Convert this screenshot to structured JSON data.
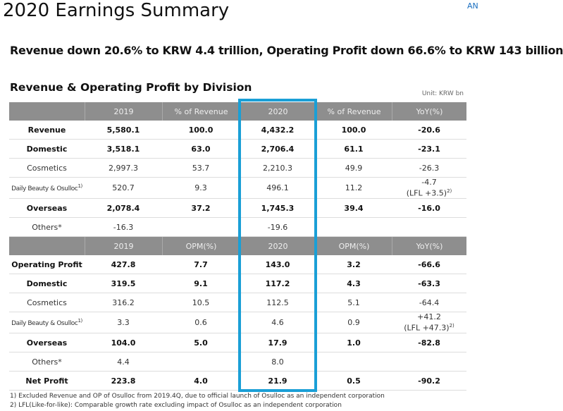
{
  "header": {
    "title": "2020 Earnings Summary",
    "logo": "AN",
    "headline": "Revenue down 20.6% to KRW 4.4 trillion, Operating Profit down 66.6% to KRW 143 billion"
  },
  "table": {
    "title": "Revenue & Operating Profit by Division",
    "unit": "Unit: KRW bn",
    "sections": [
      {
        "header": [
          null,
          "2019",
          "% of Revenue",
          "2020",
          "% of Revenue",
          "YoY(%)"
        ],
        "rows": [
          {
            "cells": [
              "Revenue",
              "5,580.1",
              "100.0",
              "4,432.2",
              "100.0",
              "-20.6"
            ],
            "bold": true
          },
          {
            "cells": [
              "Domestic",
              "3,518.1",
              "63.0",
              "2,706.4",
              "61.1",
              "-23.1"
            ],
            "bold": true
          },
          {
            "cells": [
              "Cosmetics",
              "2,997.3",
              "53.7",
              "2,210.3",
              "49.9",
              "-26.3"
            ],
            "bold": false
          },
          {
            "cells": [
              "Daily Beauty & Osulloc",
              "520.7",
              "9.3",
              "496.1",
              "11.2",
              "-4.7"
            ],
            "bold": false,
            "label_note": "1)",
            "yoy_extra": "(LFL +3.5)",
            "yoy_note": "2)"
          },
          {
            "cells": [
              "Overseas",
              "2,078.4",
              "37.2",
              "1,745.3",
              "39.4",
              "-16.0"
            ],
            "bold": true
          },
          {
            "cells": [
              "Others*",
              "-16.3",
              null,
              "-19.6",
              null,
              null
            ],
            "bold": false
          }
        ]
      },
      {
        "header": [
          null,
          "2019",
          "OPM(%)",
          "2020",
          "OPM(%)",
          "YoY(%)"
        ],
        "rows": [
          {
            "cells": [
              "Operating Profit",
              "427.8",
              "7.7",
              "143.0",
              "3.2",
              "-66.6"
            ],
            "bold": true
          },
          {
            "cells": [
              "Domestic",
              "319.5",
              "9.1",
              "117.2",
              "4.3",
              "-63.3"
            ],
            "bold": true
          },
          {
            "cells": [
              "Cosmetics",
              "316.2",
              "10.5",
              "112.5",
              "5.1",
              "-64.4"
            ],
            "bold": false
          },
          {
            "cells": [
              "Daily Beauty & Osulloc",
              "3.3",
              "0.6",
              "4.6",
              "0.9",
              "+41.2"
            ],
            "bold": false,
            "label_note": "1)",
            "yoy_extra": "(LFL +47.3)",
            "yoy_note": "2)"
          },
          {
            "cells": [
              "Overseas",
              "104.0",
              "5.0",
              "17.9",
              "1.0",
              "-82.8"
            ],
            "bold": true
          },
          {
            "cells": [
              "Others*",
              "4.4",
              null,
              "8.0",
              null,
              null
            ],
            "bold": false
          },
          {
            "cells": [
              "Net Profit",
              "223.8",
              "4.0",
              "21.9",
              "0.5",
              "-90.2"
            ],
            "bold": true
          }
        ]
      }
    ]
  },
  "footnotes": [
    "1) Excluded Revenue and OP of Osulloc from 2019.4Q, due to official launch of Osulloc as an independent corporation",
    "2) LFL(Like-for-like): Comparable growth rate excluding impact of Osulloc as an independent corporation"
  ]
}
